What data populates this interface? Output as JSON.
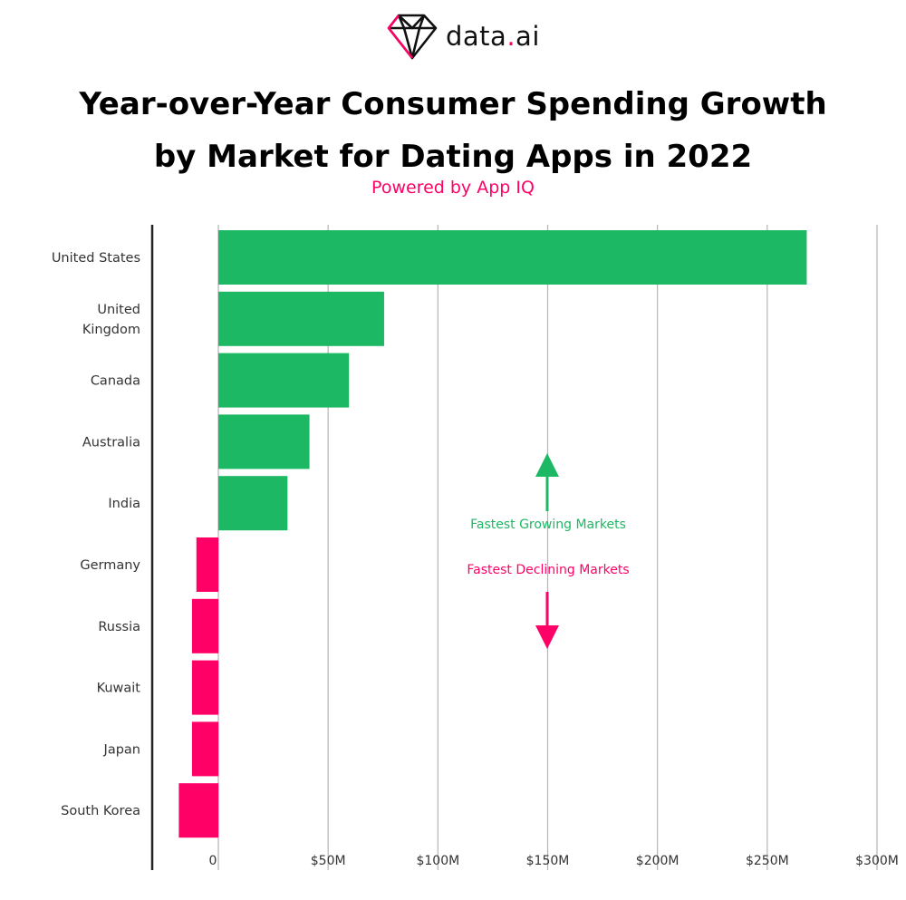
{
  "brand": {
    "name_main": "data",
    "name_dot": ".",
    "name_suffix": "ai"
  },
  "header": {
    "title_line1": "Year-over-Year Consumer Spending Growth",
    "title_line2": "by Market for Dating Apps in 2022",
    "subtitle": "Powered by App IQ"
  },
  "colors": {
    "positive": "#1db863",
    "negative": "#ff0066",
    "grid": "#b5b5b5",
    "axis": "#222222"
  },
  "chart_data": {
    "type": "bar",
    "orientation": "horizontal",
    "title": "Year-over-Year Consumer Spending Growth by Market for Dating Apps in 2022",
    "xlabel": "",
    "ylabel": "",
    "unit": "USD millions",
    "categories": [
      "United States",
      "United Kingdom",
      "Canada",
      "Australia",
      "India",
      "Germany",
      "Russia",
      "Kuwait",
      "Japan",
      "South Korea"
    ],
    "values": [
      268,
      75.5,
      59.5,
      41.5,
      31.5,
      -10,
      -12,
      -12,
      -12,
      -18
    ],
    "xlim": [
      -30,
      300
    ],
    "xticks": [
      0,
      50,
      100,
      150,
      200,
      250,
      300
    ],
    "xtick_labels": [
      "0",
      "$50M",
      "$100M",
      "$150M",
      "$200M",
      "$250M",
      "$300M"
    ],
    "grid": true,
    "annotations": {
      "up": "Fastest Growing Markets",
      "down": "Fastest Declining Markets"
    }
  }
}
